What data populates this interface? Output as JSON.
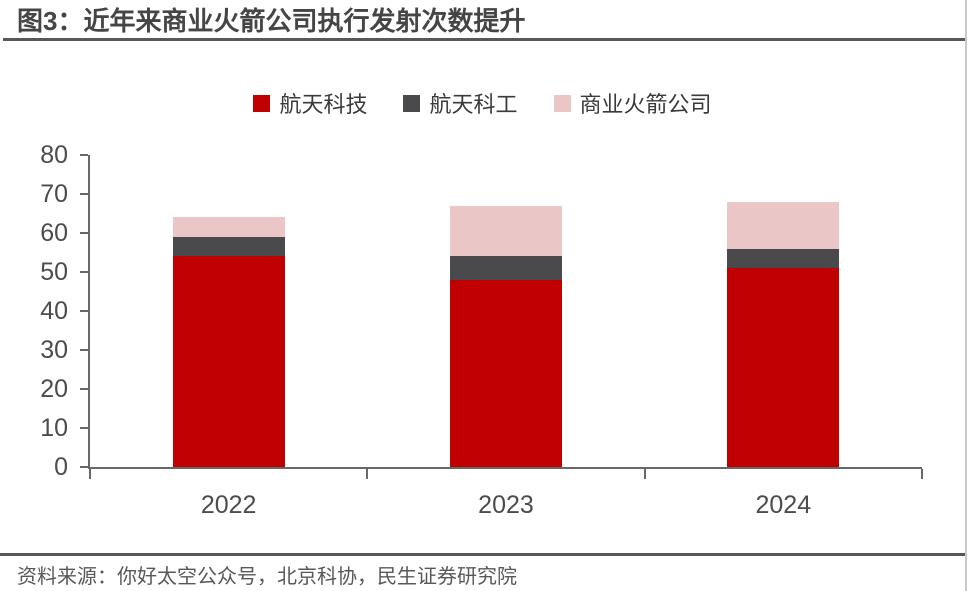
{
  "title": "图3：近年来商业火箭公司执行发射次数提升",
  "source": "资料来源：你好太空公众号，北京科协，民生证券研究院",
  "chart_data": {
    "type": "bar",
    "stacked": true,
    "title": "近年来商业火箭公司执行发射次数提升",
    "categories": [
      "2022",
      "2023",
      "2024"
    ],
    "series": [
      {
        "name": "航天科技",
        "color": "#c00000",
        "values": [
          54,
          48,
          51
        ]
      },
      {
        "name": "航天科工",
        "color": "#4a4a4c",
        "values": [
          5,
          6,
          5
        ]
      },
      {
        "name": "商业火箭公司",
        "color": "#eac6c6",
        "values": [
          5,
          13,
          12
        ]
      }
    ],
    "totals": [
      64,
      67,
      68
    ],
    "xlabel": "",
    "ylabel": "",
    "ylim": [
      0,
      80
    ],
    "yticks": [
      0,
      10,
      20,
      30,
      40,
      50,
      60,
      70,
      80
    ],
    "grid": false,
    "legend_position": "top"
  },
  "colors": {
    "axis": "#686868",
    "divider_rule": "#57585a",
    "page_right_border": "#c9c9c9"
  }
}
